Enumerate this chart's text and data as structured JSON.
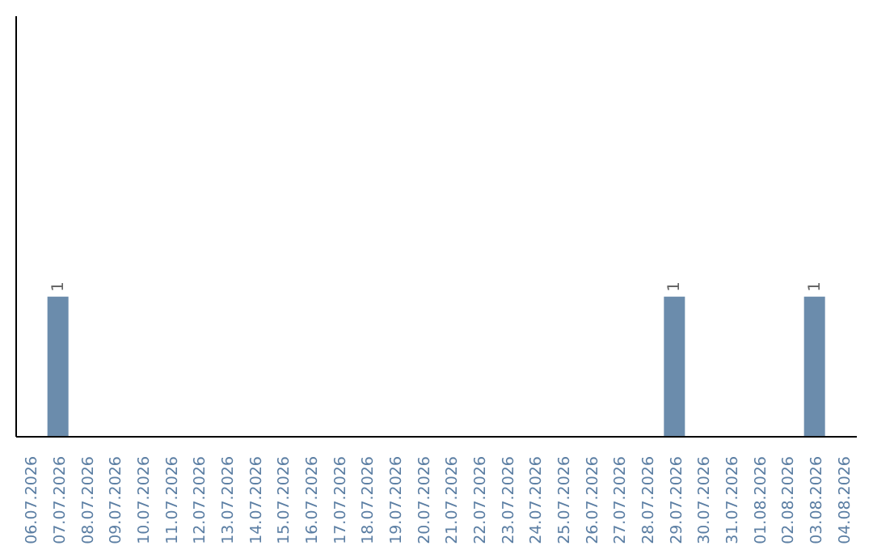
{
  "chart_data": {
    "type": "bar",
    "categories": [
      "06.07.2026",
      "07.07.2026",
      "08.07.2026",
      "09.07.2026",
      "10.07.2026",
      "11.07.2026",
      "12.07.2026",
      "13.07.2026",
      "14.07.2026",
      "15.07.2026",
      "16.07.2026",
      "17.07.2026",
      "18.07.2026",
      "19.07.2026",
      "20.07.2026",
      "21.07.2026",
      "22.07.2026",
      "23.07.2026",
      "24.07.2026",
      "25.07.2026",
      "26.07.2026",
      "27.07.2026",
      "28.07.2026",
      "29.07.2026",
      "30.07.2026",
      "31.07.2026",
      "01.08.2026",
      "02.08.2026",
      "03.08.2026",
      "04.08.2026"
    ],
    "values": [
      0,
      1,
      0,
      0,
      0,
      0,
      0,
      0,
      0,
      0,
      0,
      0,
      0,
      0,
      0,
      0,
      0,
      0,
      0,
      0,
      0,
      0,
      0,
      1,
      0,
      0,
      0,
      0,
      1,
      0
    ],
    "value_labels": [
      null,
      "1",
      null,
      null,
      null,
      null,
      null,
      null,
      null,
      null,
      null,
      null,
      null,
      null,
      null,
      null,
      null,
      null,
      null,
      null,
      null,
      null,
      null,
      "1",
      null,
      null,
      null,
      null,
      "1",
      null
    ],
    "color": "#6b8cac",
    "ylim": [
      0,
      3
    ],
    "tick_labels": "x",
    "grid": false,
    "legend": false
  }
}
